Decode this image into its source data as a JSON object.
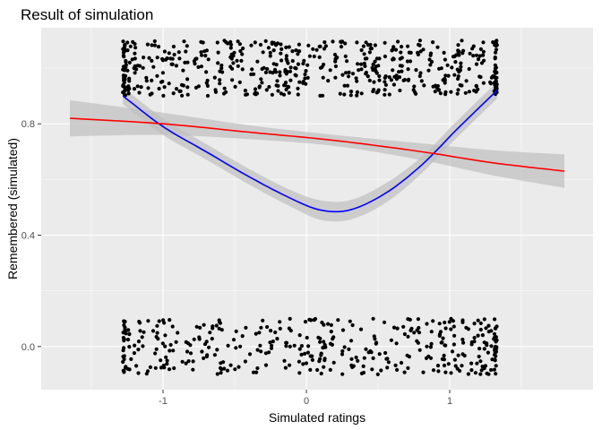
{
  "chart_data": {
    "type": "scatter",
    "title": "Result of simulation",
    "xlabel": "Simulated ratings",
    "ylabel": "Remembered (simulated)",
    "xlim": [
      -1.85,
      2.0
    ],
    "ylim": [
      -0.155,
      1.145
    ],
    "x_ticks": [
      -1,
      0,
      1
    ],
    "x_tick_labels": [
      "-1",
      "0",
      "1"
    ],
    "y_ticks": [
      0.0,
      0.4,
      0.8
    ],
    "y_tick_labels": [
      "0.0",
      "0.4",
      "0.8"
    ],
    "grid": true,
    "background": "#ebebeb",
    "points": {
      "description": "jittered binary outcomes (0 or 1) plotted against simulated ratings",
      "x_range": [
        -1.28,
        1.33
      ],
      "groups": [
        {
          "y": 1,
          "jitter": 0.1,
          "count": 560
        },
        {
          "y": 0,
          "jitter": 0.1,
          "count": 400
        }
      ],
      "color": "#000000"
    },
    "series": [
      {
        "type": "smooth",
        "color": "#0000ff",
        "ribbon_color": "#bfbfbf",
        "x": [
          -1.28,
          -1.0,
          -0.7,
          -0.4,
          -0.1,
          0.1,
          0.3,
          0.55,
          0.8,
          1.05,
          1.33
        ],
        "y": [
          0.9,
          0.79,
          0.7,
          0.61,
          0.53,
          0.49,
          0.49,
          0.55,
          0.65,
          0.78,
          0.92
        ],
        "se": [
          0.03,
          0.03,
          0.028,
          0.028,
          0.03,
          0.035,
          0.035,
          0.035,
          0.03,
          0.03,
          0.03
        ]
      },
      {
        "type": "smooth",
        "color": "#ff0000",
        "ribbon_color": "#bfbfbf",
        "x": [
          -1.65,
          -1.0,
          -0.4,
          0.2,
          0.8,
          1.3,
          1.8
        ],
        "y": [
          0.82,
          0.8,
          0.77,
          0.74,
          0.7,
          0.66,
          0.63
        ],
        "se": [
          0.065,
          0.04,
          0.025,
          0.02,
          0.03,
          0.045,
          0.06
        ]
      }
    ]
  }
}
